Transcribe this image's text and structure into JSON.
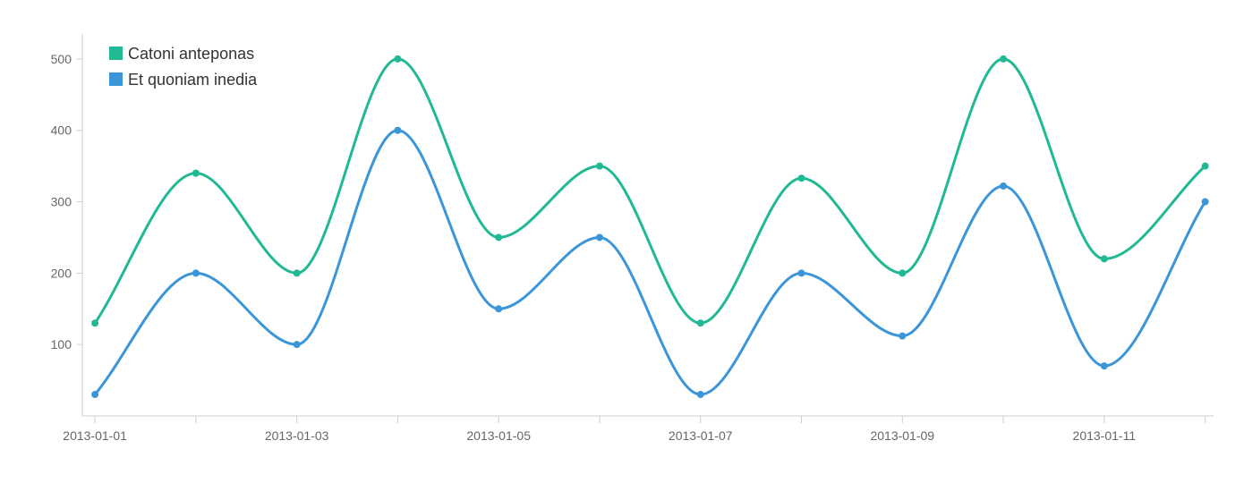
{
  "chart_data": {
    "type": "line",
    "title": "",
    "xlabel": "",
    "ylabel": "",
    "x": [
      "2013-01-01",
      "2013-01-02",
      "2013-01-03",
      "2013-01-04",
      "2013-01-05",
      "2013-01-06",
      "2013-01-07",
      "2013-01-08",
      "2013-01-09",
      "2013-01-10",
      "2013-01-11",
      "2013-01-12"
    ],
    "x_tick_labels": [
      "2013-01-01",
      "2013-01-03",
      "2013-01-05",
      "2013-01-07",
      "2013-01-09",
      "2013-01-11"
    ],
    "y_ticks": [
      100,
      200,
      300,
      400,
      500
    ],
    "xlim": [
      "2012-12-31T21:00",
      "2013-01-12T02:00"
    ],
    "ylim": [
      0,
      535
    ],
    "grid": false,
    "legend_position": "top-left",
    "curve": "smooth",
    "series": [
      {
        "name": "Catoni anteponas",
        "color": "#20b994",
        "values": [
          130,
          340,
          200,
          500,
          250,
          350,
          130,
          333,
          200,
          500,
          220,
          350
        ]
      },
      {
        "name": "Et quoniam inedia",
        "color": "#3a96d8",
        "values": [
          30,
          200,
          100,
          400,
          150,
          250,
          30,
          200,
          112,
          322,
          70,
          300
        ]
      }
    ]
  }
}
